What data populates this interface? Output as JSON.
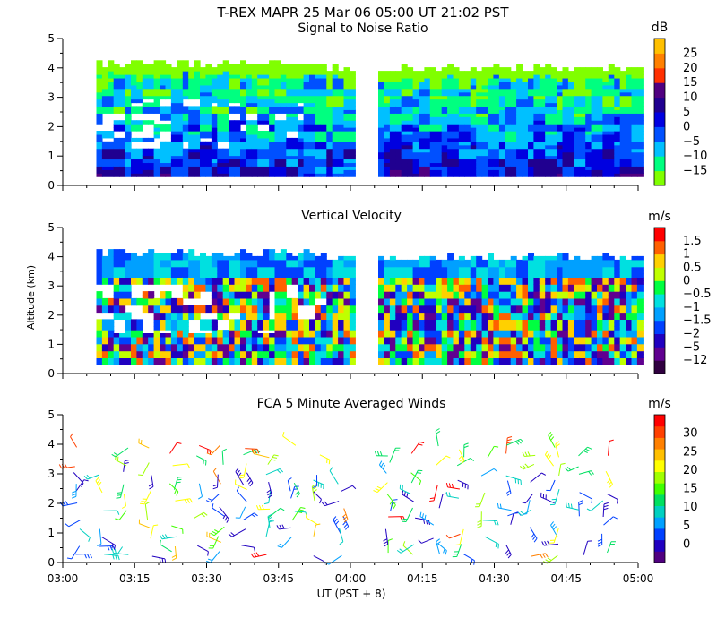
{
  "figure": {
    "title": "T-REX   MAPR 25 Mar 06   05:00 UT   21:02   PST",
    "ylabel": "Altitude (km)",
    "xlabel": "UT  (PST + 8)",
    "x_ticks": [
      "03:00",
      "03:15",
      "03:30",
      "03:45",
      "04:00",
      "04:15",
      "04:30",
      "04:45",
      "05:00"
    ],
    "y_ticks": [
      "0",
      "1",
      "2",
      "3",
      "4",
      "5"
    ]
  },
  "chart_data": [
    {
      "type": "heatmap",
      "title": "Signal to Noise Ratio",
      "xlabel": "UT  (PST + 8)",
      "ylabel": "Altitude (km)",
      "xlim": [
        "03:00",
        "05:00"
      ],
      "ylim": [
        0,
        5
      ],
      "colorbar": {
        "unit": "dB",
        "levels": [
          -15,
          -10,
          -5,
          0,
          5,
          10,
          15,
          20,
          25
        ],
        "tick_labels": [
          "25",
          "20",
          "15",
          "10",
          "5",
          "0",
          "−5",
          "−10",
          "−15"
        ],
        "colors": [
          "#80ff00",
          "#00ff80",
          "#00c0ff",
          "#0050ff",
          "#0000e0",
          "#200090",
          "#500080",
          "#ff3000",
          "#ff8000",
          "#ffc000"
        ]
      },
      "data_gap": [
        "04:00",
        "04:05"
      ],
      "data_extent_altitude_km": [
        0.3,
        4.2
      ],
      "grid": false
    },
    {
      "type": "heatmap",
      "title": "Vertical Velocity",
      "xlabel": "UT  (PST + 8)",
      "ylabel": "Altitude (km)",
      "xlim": [
        "03:00",
        "05:00"
      ],
      "ylim": [
        0,
        5
      ],
      "colorbar": {
        "unit": "m/s",
        "levels": [
          -12,
          -5,
          -2,
          -1.5,
          -1,
          -0.5,
          0,
          0.5,
          1,
          1.5
        ],
        "tick_labels": [
          "1.5",
          "1",
          "0.5",
          "0",
          "−0.5",
          "−1",
          "−1.5",
          "−2",
          "−5",
          "−12"
        ],
        "colors": [
          "#300040",
          "#600090",
          "#2000c0",
          "#0040ff",
          "#00a0ff",
          "#00e0e0",
          "#00ff40",
          "#c0ff00",
          "#ffd000",
          "#ff6000",
          "#ff0000"
        ]
      },
      "data_gap": [
        "04:00",
        "04:05"
      ],
      "data_extent_altitude_km": [
        0.3,
        4.2
      ],
      "grid": false
    },
    {
      "type": "scatter",
      "subtype": "wind barbs",
      "title": "FCA 5 Minute Averaged Winds",
      "xlabel": "UT  (PST + 8)",
      "ylabel": "Altitude (km)",
      "xlim": [
        "03:00",
        "05:00"
      ],
      "ylim": [
        0,
        5
      ],
      "colorbar": {
        "unit": "m/s",
        "levels": [
          0,
          5,
          10,
          15,
          20,
          25,
          30
        ],
        "tick_labels": [
          "30",
          "25",
          "20",
          "15",
          "10",
          "5",
          "0"
        ],
        "colors": [
          "#500080",
          "#2000c0",
          "#0040ff",
          "#00a0ff",
          "#00d0c0",
          "#00e060",
          "#40ff00",
          "#a0ff00",
          "#ffff00",
          "#ffc000",
          "#ff8000",
          "#ff4000",
          "#ff0000"
        ]
      },
      "data_gap": [
        "04:00",
        "04:05"
      ],
      "grid": false
    }
  ]
}
